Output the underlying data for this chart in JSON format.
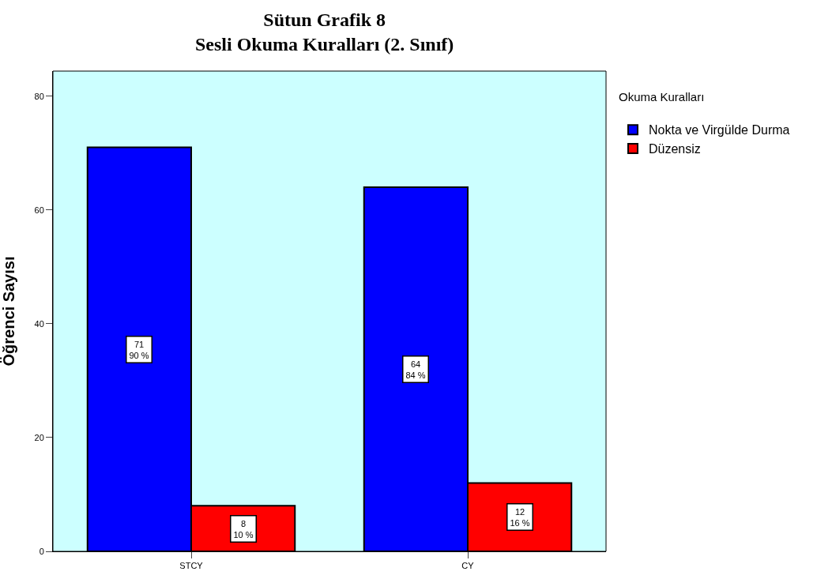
{
  "chart_data": {
    "type": "bar",
    "title": "Sütun Grafik 8\nSesli Okuma Kuralları (2. Sınıf)",
    "ylabel": "Öğrenci Sayısı",
    "legend_title": "Okuma Kuralları",
    "categories": [
      "STCY",
      "CY"
    ],
    "series": [
      {
        "name": "Nokta ve Virgülde Durma",
        "color": "#0000ff",
        "values": [
          71,
          64
        ],
        "value_labels": [
          "71\n90 %",
          "64\n84 %"
        ]
      },
      {
        "name": "Düzensiz",
        "color": "#ff0000",
        "values": [
          8,
          12
        ],
        "value_labels": [
          "8\n10 %",
          "12\n16 %"
        ]
      }
    ],
    "ylim": [
      0,
      84.4
    ],
    "yticks": [
      0,
      20,
      40,
      60,
      80
    ],
    "grid": false,
    "legend": "top right"
  }
}
